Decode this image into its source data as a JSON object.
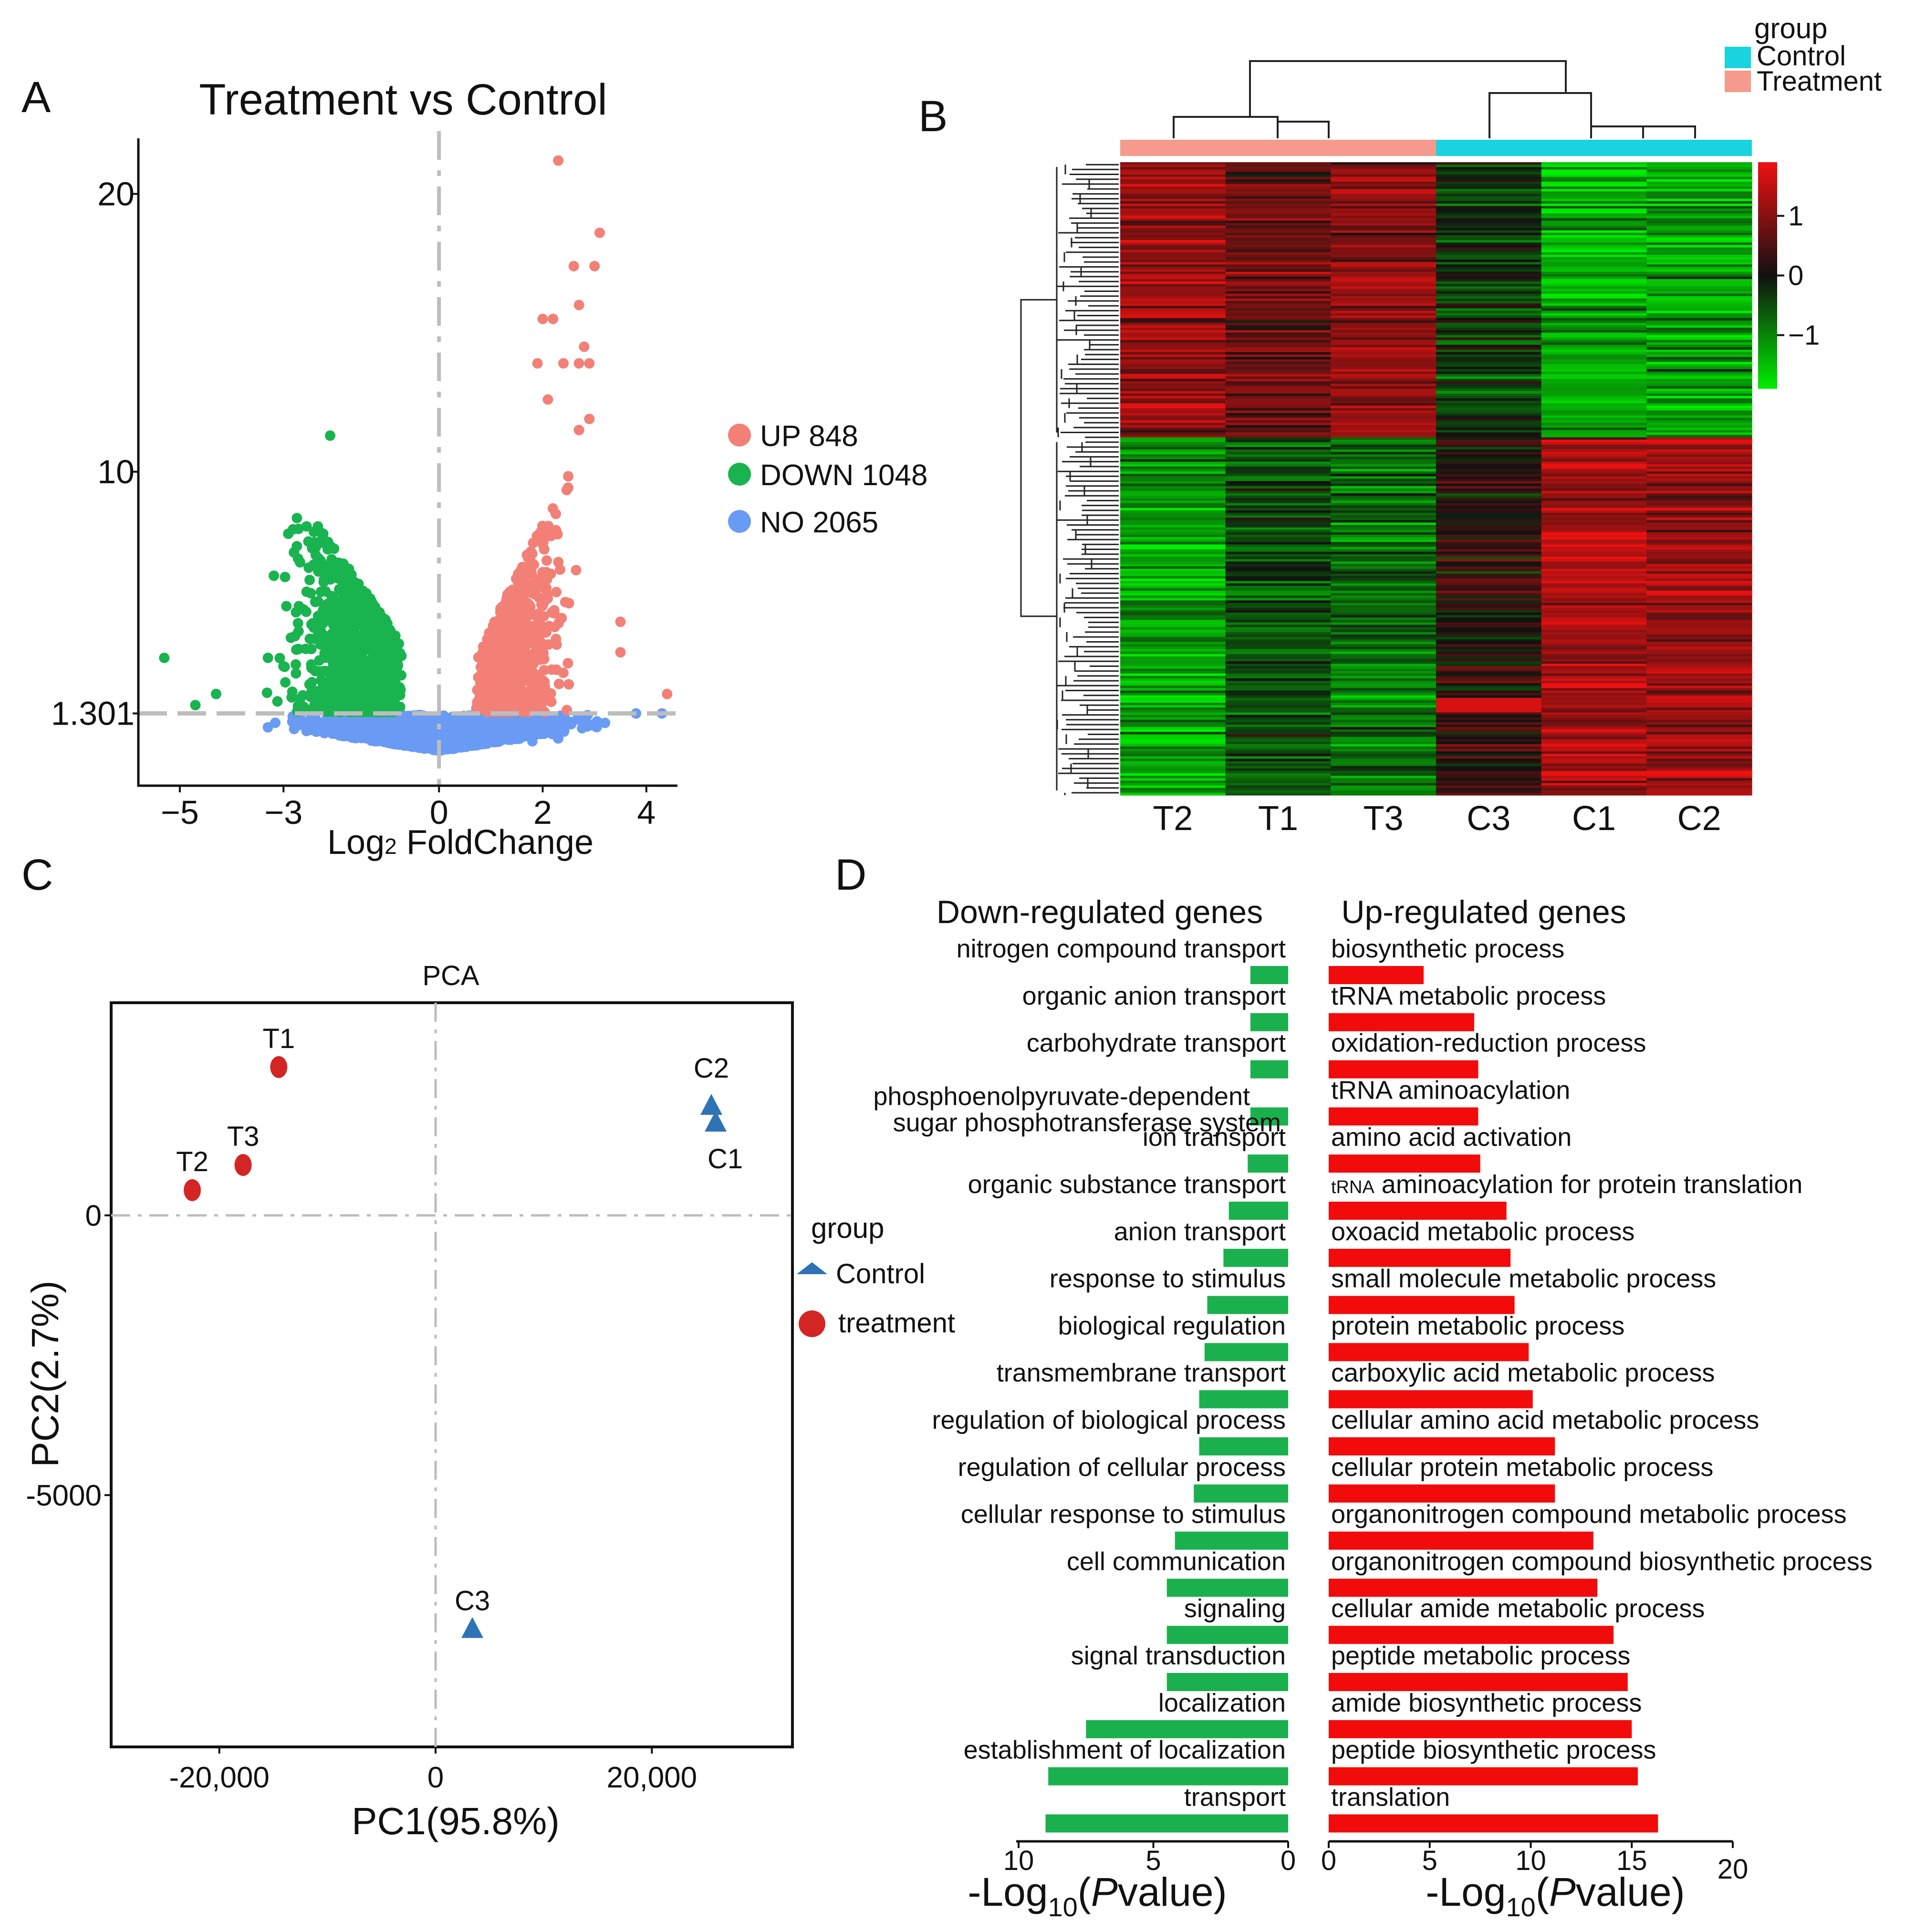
{
  "panels": {
    "a": "A",
    "b": "B",
    "c": "C",
    "d": "D"
  },
  "colors": {
    "up": "#f28077",
    "down": "#19b350",
    "no": "#6a9bf4",
    "heat_low": "#00ee00",
    "heat_mid": "#111111",
    "heat_high": "#ee1111",
    "group_control": "#19d3df",
    "group_treatment": "#f59a8c",
    "pca_control": "#2e73b5",
    "pca_treatment": "#d42525",
    "go_down": "#1bb04e",
    "go_up": "#f20b0b",
    "threshold": "#bdbdbd"
  },
  "chart_data": [
    {
      "type": "scatter",
      "panel": "A",
      "title": "Treatment vs Control",
      "xlabel": "Log2 FoldChange",
      "xlabel_main": "Log",
      "xlabel_sub": "2",
      "xlabel_rest": " FoldChange",
      "xlim": [
        -5.8,
        4.6
      ],
      "ylim": [
        -1.3,
        22
      ],
      "xticks": [
        -5,
        -3,
        0,
        2,
        4
      ],
      "xtick_labels": [
        "−5",
        "−3",
        "0",
        "2",
        "4"
      ],
      "yticks": [
        1.301,
        10,
        20
      ],
      "ytick_labels": [
        "1.301",
        "10",
        "20"
      ],
      "legend": [
        {
          "key": "up",
          "label": "UP 848"
        },
        {
          "key": "down",
          "label": "DOWN 1048"
        },
        {
          "key": "no",
          "label": "NO 2065"
        }
      ],
      "hline": 1.301,
      "vline": 0,
      "counts": {
        "up": 848,
        "down": 1048,
        "no": 2065
      },
      "highlight_points": [
        {
          "x": 2.3,
          "y": 21.2,
          "cat": "up"
        },
        {
          "x": 3.1,
          "y": 18.6,
          "cat": "up"
        },
        {
          "x": 2.6,
          "y": 17.4,
          "cat": "up"
        },
        {
          "x": 3.0,
          "y": 17.4,
          "cat": "up"
        },
        {
          "x": 2.7,
          "y": 16.0,
          "cat": "up"
        },
        {
          "x": 2.0,
          "y": 15.5,
          "cat": "up"
        },
        {
          "x": 2.2,
          "y": 15.5,
          "cat": "up"
        },
        {
          "x": 2.8,
          "y": 14.5,
          "cat": "up"
        },
        {
          "x": 1.9,
          "y": 13.9,
          "cat": "up"
        },
        {
          "x": 2.4,
          "y": 13.9,
          "cat": "up"
        },
        {
          "x": 2.7,
          "y": 13.9,
          "cat": "up"
        },
        {
          "x": 2.9,
          "y": 13.9,
          "cat": "up"
        },
        {
          "x": 2.1,
          "y": 12.6,
          "cat": "up"
        },
        {
          "x": 2.9,
          "y": 11.9,
          "cat": "up"
        },
        {
          "x": 2.7,
          "y": 11.5,
          "cat": "up"
        },
        {
          "x": 3.5,
          "y": 4.6,
          "cat": "up"
        },
        {
          "x": 3.5,
          "y": 3.5,
          "cat": "up"
        },
        {
          "x": 4.4,
          "y": 2.0,
          "cat": "up"
        },
        {
          "x": -2.1,
          "y": 11.3,
          "cat": "down"
        },
        {
          "x": -5.3,
          "y": 3.3,
          "cat": "down"
        },
        {
          "x": -4.3,
          "y": 2.0,
          "cat": "down"
        },
        {
          "x": -3.3,
          "y": 3.3,
          "cat": "down"
        },
        {
          "x": -3.0,
          "y": 3.0,
          "cat": "down"
        },
        {
          "x": -4.7,
          "y": 1.6,
          "cat": "down"
        },
        {
          "x": 4.3,
          "y": 1.3,
          "cat": "no"
        },
        {
          "x": 3.8,
          "y": 1.3,
          "cat": "no"
        },
        {
          "x": 2.3,
          "y": 0.4,
          "cat": "no"
        },
        {
          "x": -3.3,
          "y": 0.8,
          "cat": "no"
        },
        {
          "x": 1.8,
          "y": 0.3,
          "cat": "no"
        }
      ]
    },
    {
      "type": "heatmap",
      "panel": "B",
      "columns": [
        "T2",
        "T1",
        "T3",
        "C3",
        "C1",
        "C2"
      ],
      "column_groups": [
        "Treatment",
        "Treatment",
        "Treatment",
        "Control",
        "Control",
        "Control"
      ],
      "legend_title": "group",
      "legend_groups": [
        {
          "key": "group_control",
          "label": "Control"
        },
        {
          "key": "group_treatment",
          "label": "Treatment"
        }
      ],
      "color_scale_ticks": [
        1,
        0,
        -1
      ],
      "color_scale_labels": [
        "1",
        "0",
        "−1"
      ],
      "color_range": [
        -1.9,
        1.9
      ],
      "clusters": [
        {
          "name": "up-in-treatment",
          "row_fraction": 0.435,
          "means": [
            1.1,
            0.75,
            1.05,
            -0.3,
            -1.35,
            -1.2
          ]
        },
        {
          "name": "down-in-treatment",
          "row_fraction": 0.565,
          "means": [
            -1.2,
            -0.5,
            -0.8,
            0.2,
            1.3,
            1.2
          ]
        }
      ]
    },
    {
      "type": "scatter",
      "panel": "C",
      "title": "PCA",
      "xlabel": "PC1(95.8%)",
      "ylabel": "PC2(2.7%)",
      "xlim": [
        -30000,
        33000
      ],
      "ylim": [
        -9500,
        3800
      ],
      "xticks": [
        -20000,
        0,
        20000
      ],
      "xtick_labels": [
        "-20,000",
        "0",
        "20,000"
      ],
      "yticks": [
        0,
        -5000
      ],
      "ytick_labels": [
        "0",
        "-5000"
      ],
      "legend_title": "group",
      "legend": [
        {
          "key": "pca_control",
          "label": "Control",
          "shape": "triangle"
        },
        {
          "key": "pca_treatment",
          "label": "treatment",
          "shape": "circle"
        }
      ],
      "points": [
        {
          "label": "T1",
          "x": -14500,
          "y": 2650,
          "group": "treatment"
        },
        {
          "label": "T3",
          "x": -17800,
          "y": 900,
          "group": "treatment"
        },
        {
          "label": "T2",
          "x": -22500,
          "y": 450,
          "group": "treatment"
        },
        {
          "label": "C2",
          "x": 25500,
          "y": 1950,
          "group": "Control"
        },
        {
          "label": "C1",
          "x": 25900,
          "y": 1650,
          "group": "Control"
        },
        {
          "label": "C3",
          "x": 3400,
          "y": -7400,
          "group": "Control"
        }
      ]
    },
    {
      "type": "bar",
      "panel": "D",
      "left_title": "Down-regulated genes",
      "right_title": "Up-regulated genes",
      "xlabel_prefix": "-Log",
      "xlabel_sub": "10",
      "xlabel_open": "(",
      "xlabel_italic": "P",
      "xlabel_close": "value)",
      "left_axis": {
        "max": 10,
        "ticks": [
          10,
          5,
          0
        ],
        "labels": [
          "10",
          "5",
          "0"
        ]
      },
      "right_axis": {
        "max": 20,
        "ticks": [
          0,
          5,
          10,
          15,
          20
        ],
        "labels": [
          "0",
          "5",
          "10",
          "15",
          "20"
        ]
      },
      "down_terms": [
        {
          "label": "nitrogen compound transport",
          "value": 1.4
        },
        {
          "label": "organic anion transport",
          "value": 1.4
        },
        {
          "label": "carbohydrate transport",
          "value": 1.4
        },
        {
          "label": "phosphoenolpyruvate-dependent",
          "label2": "sugar phosphotransferase system",
          "value": 1.4
        },
        {
          "label": "ion transport",
          "value": 1.5
        },
        {
          "label": "organic substance transport",
          "value": 2.2
        },
        {
          "label": "anion transport",
          "value": 2.4
        },
        {
          "label": "response to stimulus",
          "value": 3.0
        },
        {
          "label": "biological regulation",
          "value": 3.1
        },
        {
          "label": "transmembrane transport",
          "value": 3.3
        },
        {
          "label": "regulation of biological process",
          "value": 3.3
        },
        {
          "label": "regulation of cellular process",
          "value": 3.5
        },
        {
          "label": "cellular response to stimulus",
          "value": 4.2
        },
        {
          "label": "cell communication",
          "value": 4.5
        },
        {
          "label": "signaling",
          "value": 4.5
        },
        {
          "label": "signal transduction",
          "value": 4.5
        },
        {
          "label": "localization",
          "value": 7.5
        },
        {
          "label": "establishment of localization",
          "value": 8.9
        },
        {
          "label": "transport",
          "value": 9.0
        }
      ],
      "up_terms": [
        {
          "label": "biosynthetic process",
          "value": 4.7
        },
        {
          "label": "tRNA metabolic process",
          "value": 7.2
        },
        {
          "label": "oxidation-reduction process",
          "value": 7.4
        },
        {
          "label": "tRNA aminoacylation",
          "value": 7.4
        },
        {
          "label": "amino acid activation",
          "value": 7.5
        },
        {
          "label": "tRNA aminoacylation for protein translation",
          "label_small": "tRNA",
          "label_rest": " aminoacylation for protein translation",
          "value": 8.8
        },
        {
          "label": "oxoacid metabolic process",
          "value": 9.0
        },
        {
          "label": "small molecule metabolic process",
          "value": 9.2
        },
        {
          "label": "protein metabolic process",
          "value": 9.9
        },
        {
          "label": "carboxylic acid metabolic process",
          "value": 10.1
        },
        {
          "label": "cellular amino acid metabolic process",
          "value": 11.2
        },
        {
          "label": "cellular protein metabolic process",
          "value": 11.2
        },
        {
          "label": "organonitrogen compound metabolic process",
          "value": 13.1
        },
        {
          "label": "organonitrogen compound biosynthetic process",
          "value": 13.3
        },
        {
          "label": "cellular amide metabolic process",
          "value": 14.1
        },
        {
          "label": "peptide metabolic process",
          "value": 14.8
        },
        {
          "label": "amide biosynthetic process",
          "value": 15.0
        },
        {
          "label": "peptide biosynthetic process",
          "value": 15.3
        },
        {
          "label": "translation",
          "value": 16.3
        }
      ]
    }
  ]
}
